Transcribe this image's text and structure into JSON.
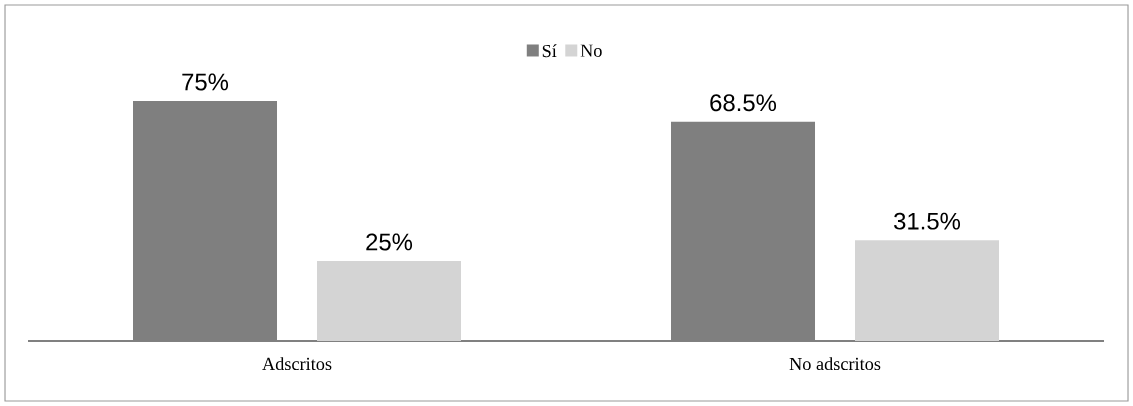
{
  "chart_data": {
    "type": "bar",
    "categories": [
      "Adscritos",
      "No adscritos"
    ],
    "series": [
      {
        "name": "Sí",
        "color": "#7f7f7f",
        "values": [
          75,
          68.5
        ],
        "value_labels": [
          "75%",
          "68.5%"
        ]
      },
      {
        "name": "No",
        "color": "#d4d4d4",
        "values": [
          25,
          31.5
        ],
        "value_labels": [
          "25%",
          "31.5%"
        ]
      }
    ],
    "legend": "top",
    "tick_labels": "x"
  }
}
